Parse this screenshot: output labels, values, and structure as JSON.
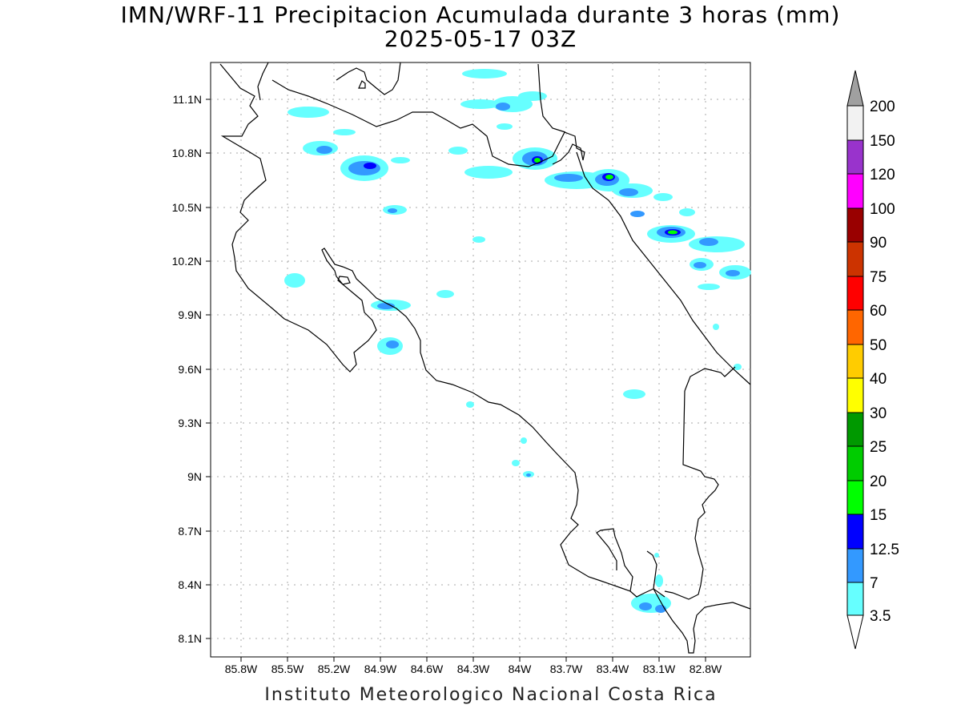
{
  "title": {
    "line1": "IMN/WRF-11 Precipitacion Acumulada durante 3 horas (mm)",
    "line2": "2025-05-17 03Z"
  },
  "footer": "Instituto Meteorologico Nacional Costa Rica",
  "map": {
    "lat_labels": [
      "11.1N",
      "10.8N",
      "10.5N",
      "10.2N",
      "9.9N",
      "9.6N",
      "9.3N",
      "9N",
      "8.7N",
      "8.4N",
      "8.1N"
    ],
    "lon_labels": [
      "85.8W",
      "85.5W",
      "85.2W",
      "84.9W",
      "84.6W",
      "84.3W",
      "84W",
      "83.7W",
      "83.4W",
      "83.1W",
      "82.8W"
    ],
    "lat_range": [
      8.0,
      11.3
    ],
    "lon_range": [
      -86.0,
      -83.0
    ],
    "grid": "dotted"
  },
  "colorbar": {
    "labels": [
      "200",
      "150",
      "120",
      "100",
      "90",
      "75",
      "60",
      "50",
      "40",
      "30",
      "25",
      "20",
      "15",
      "12.5",
      "7",
      "3.5"
    ],
    "colors": [
      "#f2f2f2",
      "#9933cc",
      "#ff00ff",
      "#990000",
      "#cc3300",
      "#ff0000",
      "#ff6600",
      "#ffcc00",
      "#ffff00",
      "#009900",
      "#00cc00",
      "#00ff00",
      "#0000ff",
      "#0022ff",
      "#3399ff",
      "#66ffff"
    ],
    "top_arrow_color": "#a0a0a0",
    "bottom_arrow_color": "#ffffff"
  },
  "precip_colors": {
    "light": "#66ffff",
    "medium": "#3399ff",
    "heavy": "#0000ff",
    "very_heavy": "#00ff00"
  }
}
